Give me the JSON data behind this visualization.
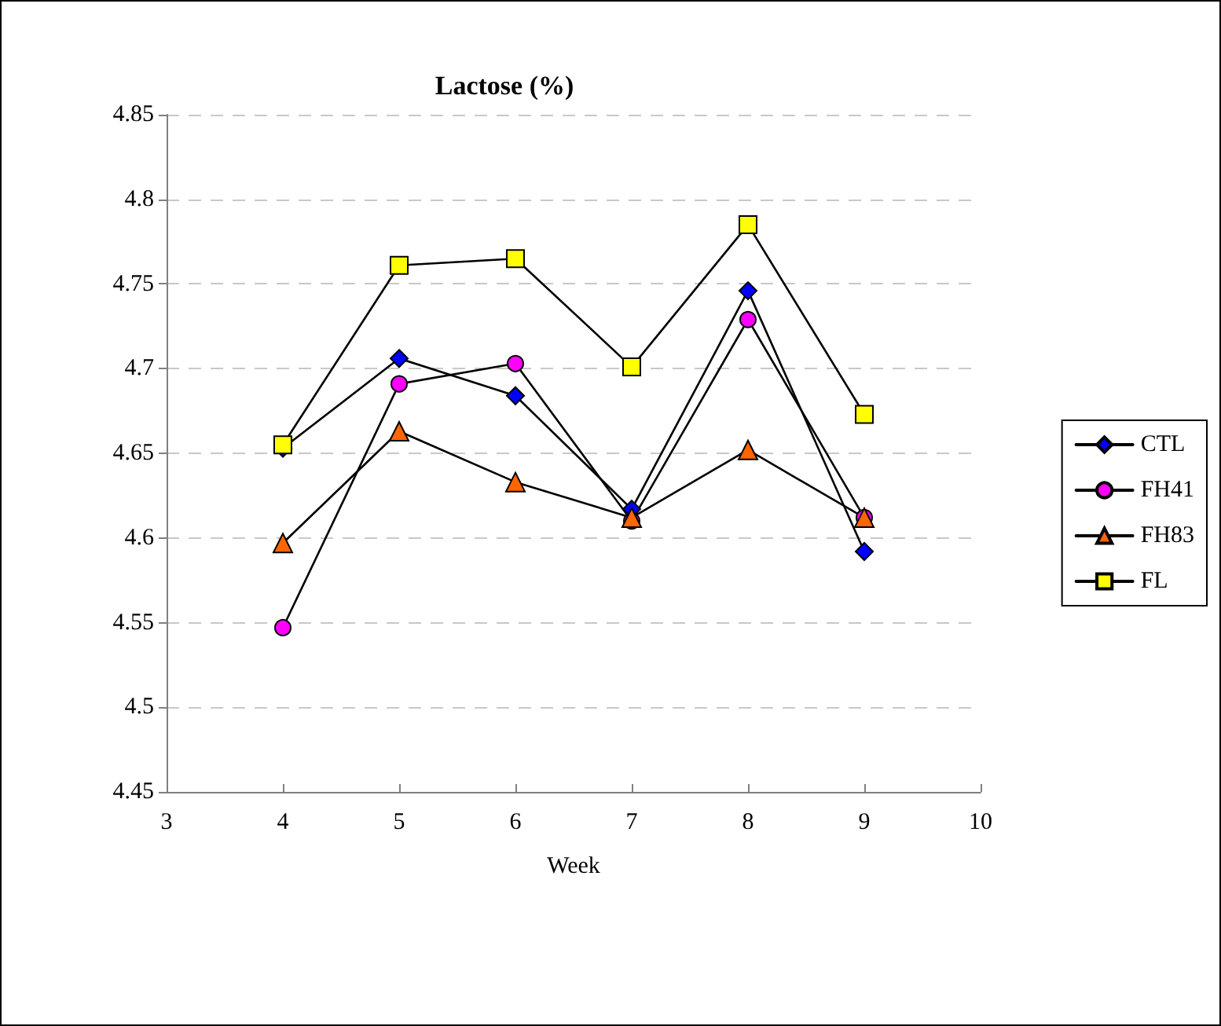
{
  "chart_data": {
    "type": "line",
    "title": "Lactose (%)",
    "xlabel": "Week",
    "x": [
      4,
      5,
      6,
      7,
      8,
      9
    ],
    "series": [
      {
        "name": "CTL",
        "color": "#0000ff",
        "marker": "diamond",
        "values": [
          4.653,
          4.706,
          4.684,
          4.617,
          4.746,
          4.592
        ]
      },
      {
        "name": "FH41",
        "color": "#ff00ff",
        "marker": "circle",
        "values": [
          4.547,
          4.691,
          4.703,
          4.61,
          4.729,
          4.612
        ]
      },
      {
        "name": "FH83",
        "color": "#ff6600",
        "marker": "triangle",
        "values": [
          4.597,
          4.663,
          4.633,
          4.612,
          4.652,
          4.612
        ]
      },
      {
        "name": "FL",
        "color": "#ffff00",
        "marker": "square",
        "values": [
          4.655,
          4.761,
          4.765,
          4.701,
          4.785,
          4.673
        ]
      }
    ],
    "xlim": [
      3,
      10
    ],
    "xticks": [
      3,
      4,
      5,
      6,
      7,
      8,
      9,
      10
    ],
    "ylim": [
      4.45,
      4.85
    ],
    "yticks": [
      4.45,
      4.5,
      4.55,
      4.6,
      4.65,
      4.7,
      4.75,
      4.8,
      4.85
    ],
    "grid": "y",
    "legend": "right",
    "line_style": "solid"
  }
}
